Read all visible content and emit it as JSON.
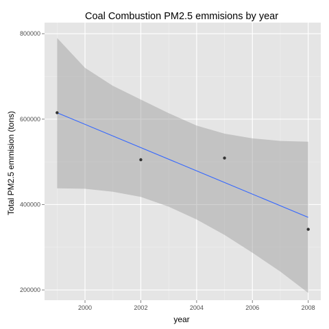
{
  "chart_data": {
    "type": "scatter",
    "title": "Coal Combustion PM2.5 emmisions by year",
    "xlabel": "year",
    "ylabel": "Total PM2.5 emmision (tons)",
    "xlim": [
      1998.55,
      2008.45
    ],
    "ylim": [
      176000,
      826000
    ],
    "x_ticks": [
      2000,
      2002,
      2004,
      2006,
      2008
    ],
    "y_ticks": [
      200000,
      400000,
      600000,
      800000
    ],
    "x_tick_labels": [
      "2000",
      "2002",
      "2004",
      "2006",
      "2008"
    ],
    "y_tick_labels": [
      "200000",
      "400000",
      "600000",
      "800000"
    ],
    "grid": true,
    "legend": "none",
    "points": [
      {
        "x": 1999,
        "y": 615000
      },
      {
        "x": 2002,
        "y": 505000
      },
      {
        "x": 2005,
        "y": 509000
      },
      {
        "x": 2008,
        "y": 342000
      }
    ],
    "fit_line": {
      "color": "#3366ff",
      "x": [
        1999,
        2008
      ],
      "y": [
        615000,
        370000
      ]
    },
    "confidence_band": {
      "color": "#999999",
      "x": [
        1999,
        2000,
        2001,
        2002,
        2003,
        2004,
        2005,
        2006,
        2007,
        2008
      ],
      "upper": [
        790000,
        720000,
        678000,
        646000,
        614000,
        585000,
        566000,
        555000,
        549000,
        547000
      ],
      "lower": [
        438000,
        437000,
        430000,
        418000,
        395000,
        365000,
        329000,
        287000,
        243000,
        193000
      ]
    },
    "colors": {
      "panel": "#e5e5e5",
      "grid_major": "#ffffff",
      "grid_minor": "#f2f2f2",
      "point": "#333333"
    }
  }
}
